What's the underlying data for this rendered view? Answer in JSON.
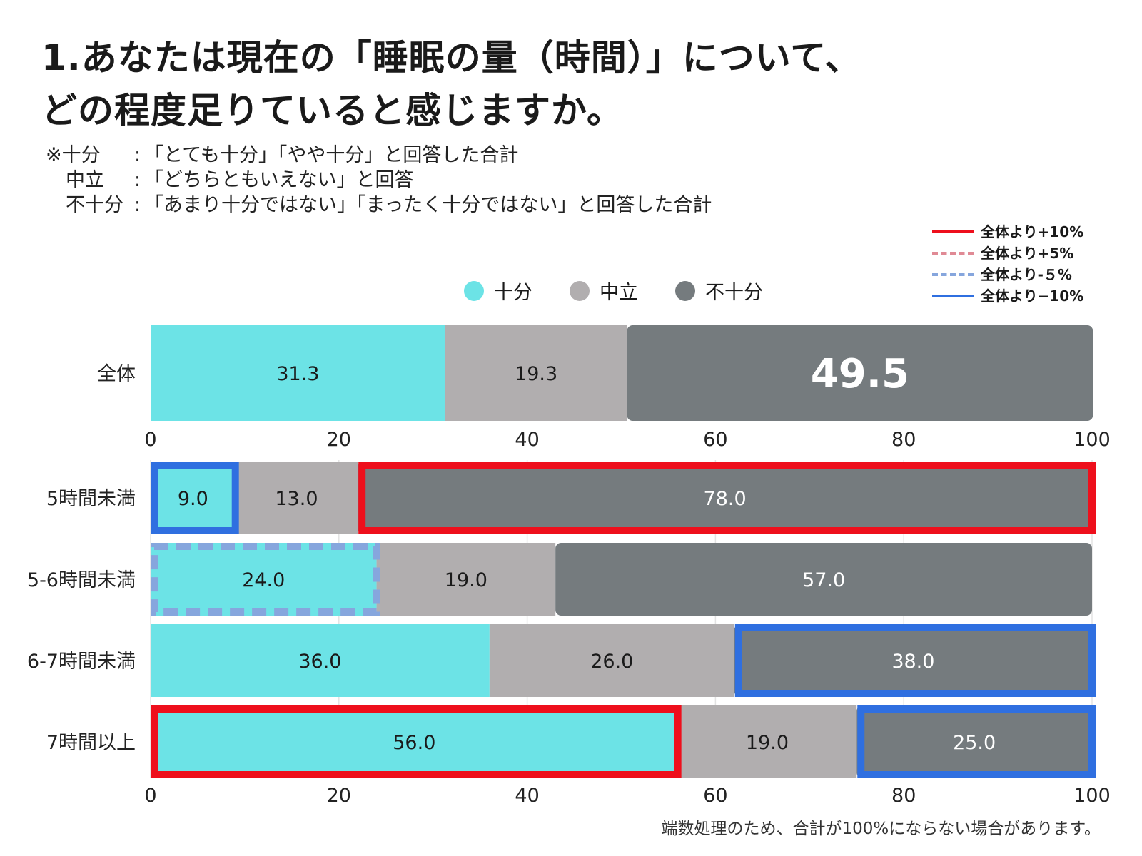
{
  "title": {
    "line1": "1.あなたは現在の「睡眠の量（時間）」について、",
    "line2": "どの程度足りていると感じますか。"
  },
  "notes": [
    {
      "label": "※十分",
      "text": "「とても十分」「やや十分」と回答した合計"
    },
    {
      "label": "中立",
      "text": "「どちらともいえない」と回答"
    },
    {
      "label": "不十分",
      "text": "「あまり十分ではない」「まったく十分ではない」と回答した合計"
    }
  ],
  "highlight_legend": [
    {
      "label": "全体より+10%",
      "color": "#ee0f1c",
      "style": "solid"
    },
    {
      "label": "全体より+5%",
      "color": "#e08a95",
      "style": "dashed"
    },
    {
      "label": "全体より-５%",
      "color": "#86a6dd",
      "style": "dashed"
    },
    {
      "label": "全体より−10%",
      "color": "#2f6fe0",
      "style": "solid"
    }
  ],
  "footnote": "端数処理のため、合計が100%にならない場合があります。",
  "chart_data": {
    "type": "bar",
    "orientation": "horizontal",
    "stacked": true,
    "series_names": [
      "十分",
      "中立",
      "不十分"
    ],
    "colors": {
      "十分": "#6ce3e6",
      "中立": "#b1aeaf",
      "不十分": "#757b7e"
    },
    "xlim": [
      0,
      100
    ],
    "xticks": [
      "0",
      "20",
      "40",
      "60",
      "80",
      "100"
    ],
    "overall": {
      "category": "全体",
      "values": [
        31.3,
        19.3,
        49.5
      ],
      "labels": [
        "31.3",
        "19.3",
        "49.5"
      ]
    },
    "categories": [
      "5時間未満",
      "5-6時間未満",
      "6-7時間未満",
      "7時間以上"
    ],
    "rows": [
      {
        "category": "5時間未満",
        "values": [
          9.0,
          13.0,
          78.0
        ],
        "labels": [
          "9.0",
          "13.0",
          "78.0"
        ],
        "highlights": [
          "−10%",
          null,
          "+10%"
        ]
      },
      {
        "category": "5-6時間未満",
        "values": [
          24.0,
          19.0,
          57.0
        ],
        "labels": [
          "24.0",
          "19.0",
          "57.0"
        ],
        "highlights": [
          "-5%",
          null,
          null
        ]
      },
      {
        "category": "6-7時間未満",
        "values": [
          36.0,
          26.0,
          38.0
        ],
        "labels": [
          "36.0",
          "26.0",
          "38.0"
        ],
        "highlights": [
          null,
          null,
          "−10%"
        ]
      },
      {
        "category": "7時間以上",
        "values": [
          56.0,
          19.0,
          25.0
        ],
        "labels": [
          "56.0",
          "19.0",
          "25.0"
        ],
        "highlights": [
          "+10%",
          null,
          "−10%"
        ]
      }
    ]
  }
}
